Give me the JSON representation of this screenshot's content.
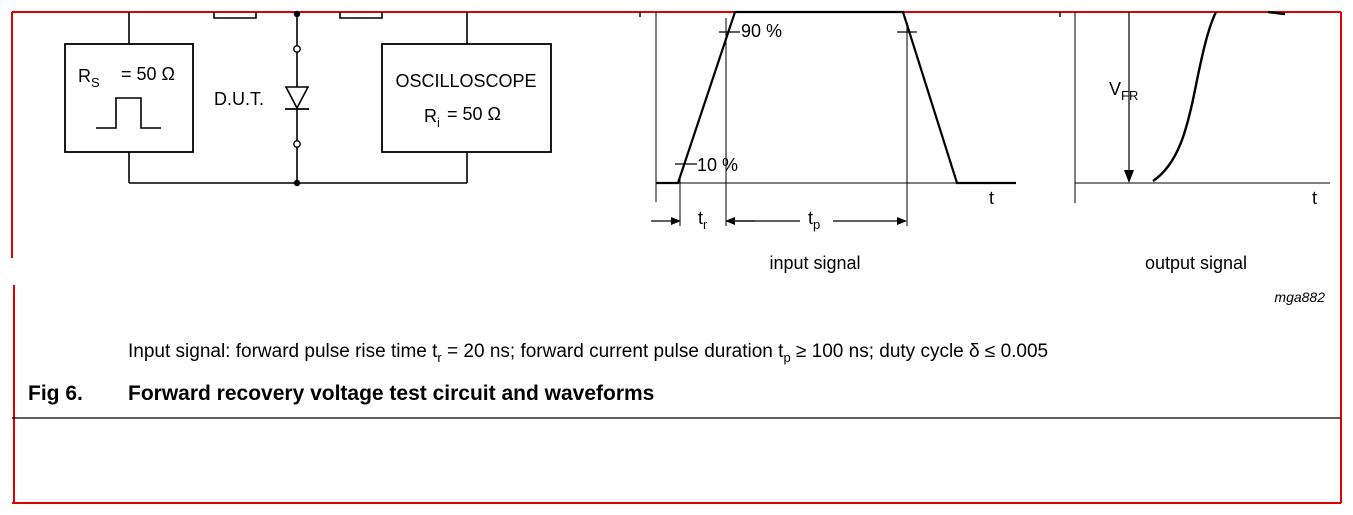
{
  "colors": {
    "frame": "#e00000",
    "ink": "#000000"
  },
  "circuit": {
    "source": {
      "label": "R",
      "label_sub": "S",
      "value": "= 50 Ω"
    },
    "dut_label": "D.U.T.",
    "scope": {
      "title": "OSCILLOSCOPE",
      "label": "R",
      "label_sub": "i",
      "value": "= 50 Ω"
    }
  },
  "input_waveform": {
    "label_90": "90 %",
    "label_10": "10 %",
    "t_axis": "t",
    "tr": {
      "main": "t",
      "sub": "r"
    },
    "tp": {
      "main": "t",
      "sub": "p"
    },
    "caption": "input  signal"
  },
  "output_waveform": {
    "vfr": {
      "main": "V",
      "sub": "FR"
    },
    "t_axis": "t",
    "caption": "output  signal"
  },
  "figure_code": "mga882",
  "note": {
    "p1": "Input signal: forward pulse rise time t",
    "s1": "r",
    "p2": " = 20 ns; forward current pulse duration t",
    "s2": "p",
    "p3": " ≥ 100 ns; duty cycle δ ≤ 0.005"
  },
  "figure": {
    "number": "Fig 6.",
    "title": "Forward recovery voltage test circuit and waveforms"
  }
}
